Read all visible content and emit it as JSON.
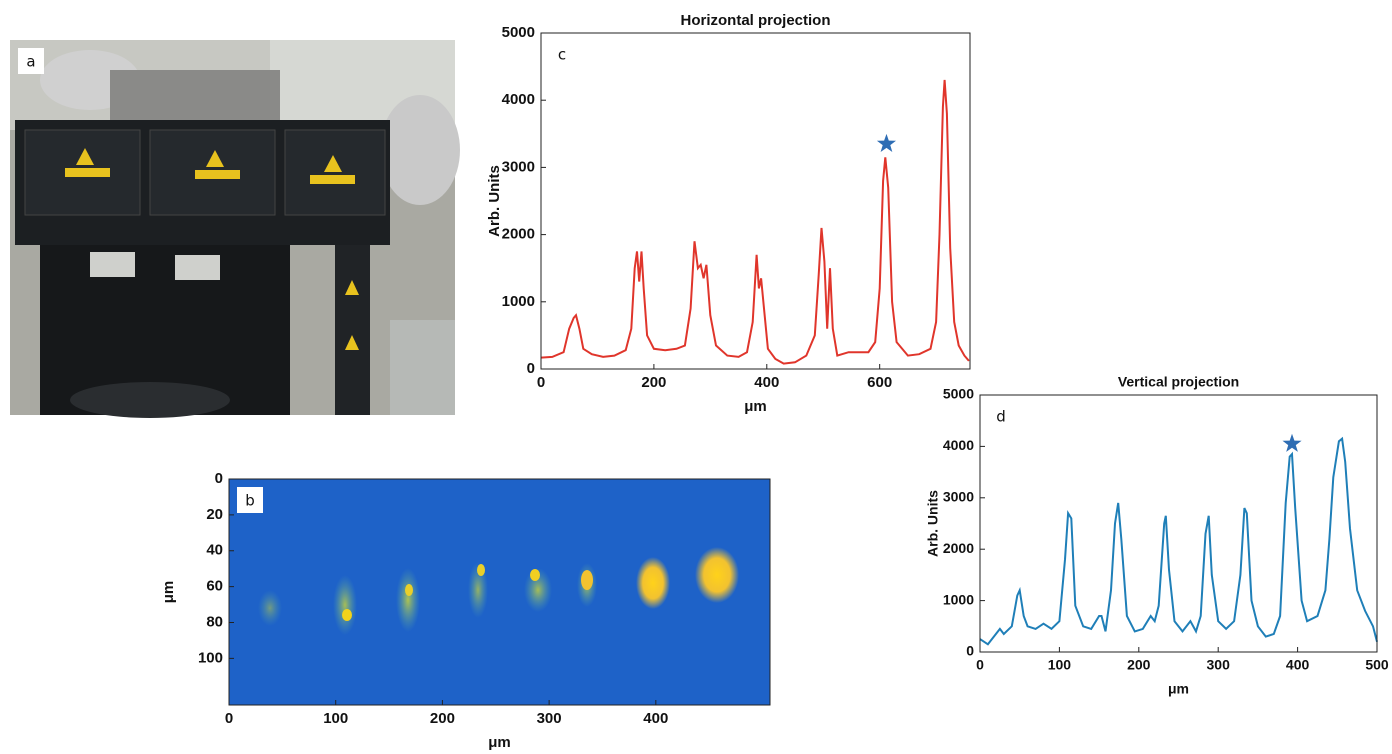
{
  "photo": {
    "panel_label": "a"
  },
  "chart_data": [
    {
      "type": "line",
      "panel_label": "c",
      "title": "Horizontal projection",
      "xlabel": "μm",
      "ylabel": "Arb. Units",
      "xlim": [
        0,
        760
      ],
      "xticks": [
        0,
        200,
        400,
        600
      ],
      "ylim": [
        0,
        5000
      ],
      "yticks": [
        0,
        1000,
        2000,
        3000,
        4000,
        5000
      ],
      "star": {
        "x": 612,
        "y": 3350,
        "color": "#2e6db4"
      },
      "series": [
        {
          "color": "#e0352b",
          "x": [
            0,
            20,
            40,
            50,
            58,
            62,
            68,
            75,
            90,
            110,
            130,
            150,
            160,
            166,
            170,
            174,
            178,
            182,
            188,
            200,
            220,
            240,
            255,
            265,
            272,
            278,
            283,
            288,
            293,
            300,
            310,
            330,
            350,
            365,
            375,
            382,
            386,
            390,
            395,
            402,
            415,
            430,
            450,
            470,
            485,
            492,
            497,
            502,
            507,
            512,
            517,
            525,
            545,
            560,
            580,
            592,
            600,
            606,
            610,
            615,
            622,
            630,
            650,
            670,
            690,
            700,
            706,
            712,
            715,
            719,
            725,
            732,
            740,
            750,
            758
          ],
          "values": [
            170,
            180,
            250,
            600,
            760,
            800,
            600,
            300,
            220,
            180,
            200,
            280,
            600,
            1500,
            1750,
            1300,
            1750,
            1200,
            500,
            300,
            280,
            300,
            350,
            900,
            1900,
            1500,
            1550,
            1350,
            1550,
            800,
            350,
            200,
            180,
            250,
            700,
            1700,
            1200,
            1350,
            900,
            300,
            150,
            80,
            100,
            200,
            500,
            1400,
            2100,
            1600,
            600,
            1500,
            600,
            200,
            250,
            250,
            250,
            400,
            1200,
            2800,
            3150,
            2700,
            1000,
            400,
            200,
            220,
            300,
            700,
            2000,
            3900,
            4300,
            3800,
            1800,
            700,
            350,
            200,
            120
          ]
        }
      ]
    },
    {
      "type": "line",
      "panel_label": "d",
      "title": "Vertical projection",
      "xlabel": "μm",
      "ylabel": "Arb. Units",
      "xlim": [
        0,
        500
      ],
      "xticks": [
        0,
        100,
        200,
        300,
        400,
        500
      ],
      "ylim": [
        0,
        5000
      ],
      "yticks": [
        0,
        1000,
        2000,
        3000,
        4000,
        5000
      ],
      "star": {
        "x": 393,
        "y": 4050,
        "color": "#2e6db4"
      },
      "series": [
        {
          "color": "#1f7fb8",
          "x": [
            0,
            10,
            20,
            25,
            30,
            40,
            47,
            50,
            55,
            60,
            70,
            80,
            90,
            100,
            107,
            111,
            115,
            120,
            130,
            140,
            150,
            153,
            158,
            165,
            170,
            174,
            178,
            185,
            195,
            205,
            215,
            220,
            225,
            232,
            234,
            238,
            245,
            255,
            265,
            272,
            278,
            284,
            288,
            292,
            300,
            310,
            320,
            328,
            333,
            336,
            342,
            350,
            360,
            370,
            378,
            385,
            390,
            393,
            397,
            405,
            412,
            425,
            435,
            440,
            445,
            452,
            456,
            460,
            466,
            475,
            485,
            495,
            500
          ],
          "values": [
            250,
            150,
            350,
            450,
            350,
            500,
            1100,
            1200,
            700,
            500,
            450,
            550,
            450,
            600,
            1800,
            2700,
            2600,
            900,
            500,
            450,
            700,
            700,
            400,
            1200,
            2500,
            2900,
            2200,
            700,
            400,
            450,
            700,
            600,
            900,
            2500,
            2650,
            1600,
            600,
            400,
            600,
            400,
            700,
            2300,
            2650,
            1500,
            600,
            450,
            600,
            1500,
            2800,
            2700,
            1000,
            500,
            300,
            350,
            700,
            2900,
            3800,
            3850,
            2800,
            1000,
            600,
            700,
            1200,
            2200,
            3400,
            4100,
            4150,
            3700,
            2400,
            1200,
            800,
            500,
            200
          ]
        }
      ]
    },
    {
      "type": "image",
      "panel_label": "b",
      "xlabel": "μm",
      "ylabel": "μm",
      "xlim": [
        0,
        507
      ],
      "xticks": [
        0,
        100,
        200,
        300,
        400
      ],
      "ylim": [
        126,
        0
      ],
      "yticks": [
        0,
        20,
        40,
        60,
        80,
        100
      ]
    }
  ]
}
